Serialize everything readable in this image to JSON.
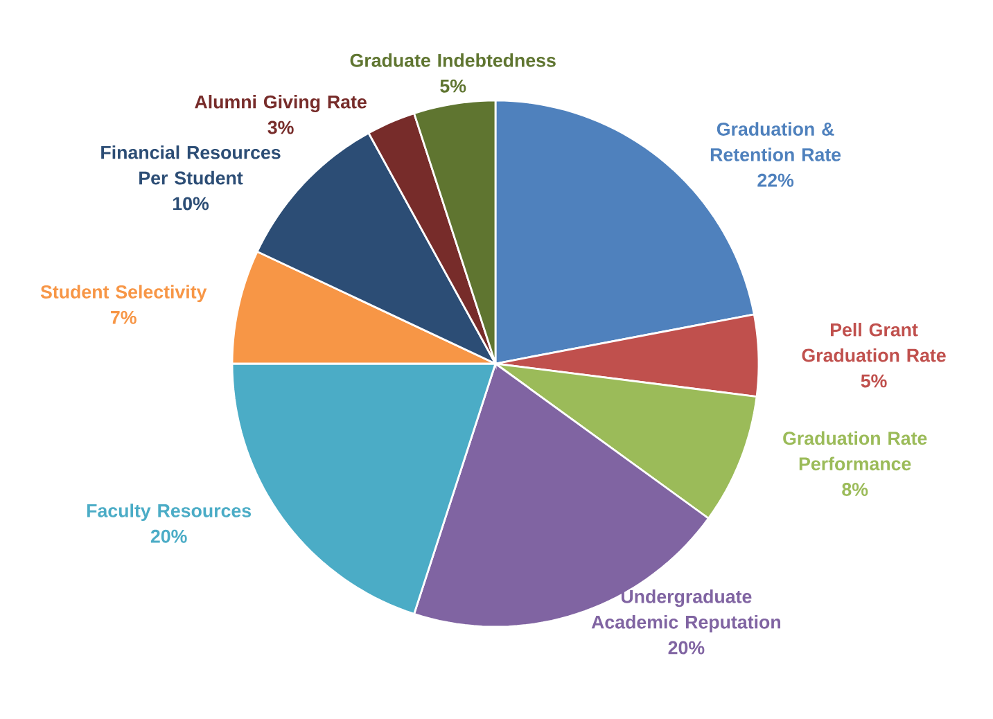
{
  "chart_data": {
    "type": "pie",
    "categories": [
      "Graduation & Retention Rate",
      "Pell Grant Graduation Rate",
      "Graduation Rate Performance",
      "Undergraduate Academic Reputation",
      "Faculty Resources",
      "Student Selectivity",
      "Financial Resources Per Student",
      "Alumni Giving Rate",
      "Graduate Indebtedness"
    ],
    "values": [
      22,
      5,
      8,
      20,
      20,
      7,
      10,
      3,
      5
    ],
    "value_labels": [
      "22%",
      "5%",
      "8%",
      "20%",
      "20%",
      "7%",
      "10%",
      "3%",
      "5%"
    ],
    "colors": [
      "#4f81bd",
      "#c0504d",
      "#9bbb59",
      "#8064a2",
      "#4bacc6",
      "#f79646",
      "#2c4d75",
      "#772c2a",
      "#5f7530"
    ]
  }
}
